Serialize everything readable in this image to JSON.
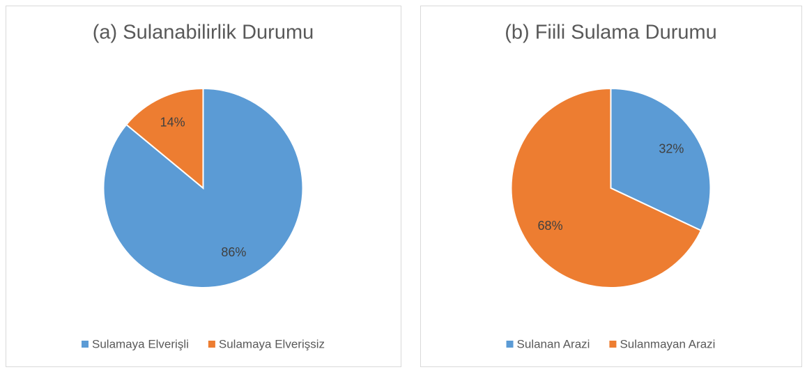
{
  "chart_data": [
    {
      "type": "pie",
      "title": "(a) Sulanabilirlik Durumu",
      "categories": [
        "Sulamaya Elverişli",
        "Sulamaya Elverişsiz"
      ],
      "values": [
        86,
        14
      ],
      "value_labels": [
        "86%",
        "14%"
      ],
      "colors": [
        "#5b9bd5",
        "#ed7d31"
      ],
      "legend": "bottom"
    },
    {
      "type": "pie",
      "title": "(b) Fiili Sulama Durumu",
      "categories": [
        "Sulanan Arazi",
        "Sulanmayan Arazi"
      ],
      "values": [
        32,
        68
      ],
      "value_labels": [
        "32%",
        "68%"
      ],
      "colors": [
        "#5b9bd5",
        "#ed7d31"
      ],
      "legend": "bottom"
    }
  ]
}
